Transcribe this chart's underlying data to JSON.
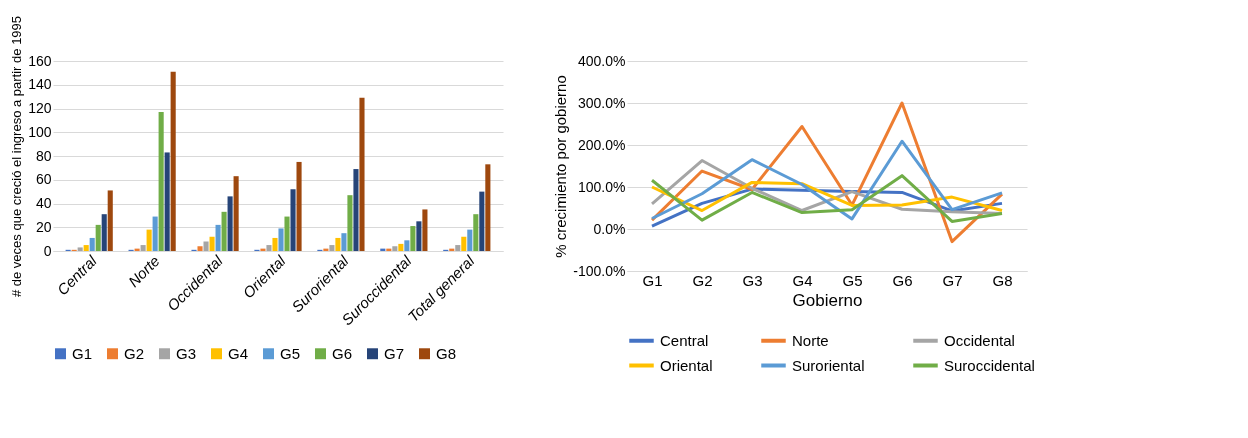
{
  "chart_data": [
    {
      "type": "bar",
      "ylabel": "# de veces que creció el ingreso a partir de 1995",
      "categories": [
        "Central",
        "Norte",
        "Occidental",
        "Oriental",
        "Suroriental",
        "Suroccidental",
        "Total general"
      ],
      "series": [
        {
          "name": "G1",
          "color": "#4472c4",
          "values": [
            1,
            1,
            1,
            1,
            1,
            2,
            1
          ]
        },
        {
          "name": "G2",
          "color": "#ed7d31",
          "values": [
            1,
            2,
            4,
            2,
            2,
            2,
            2
          ]
        },
        {
          "name": "G3",
          "color": "#a5a5a5",
          "values": [
            3,
            5,
            8,
            5,
            5,
            4,
            5
          ]
        },
        {
          "name": "G4",
          "color": "#ffc000",
          "values": [
            5,
            18,
            12,
            11,
            11,
            6,
            12
          ]
        },
        {
          "name": "G5",
          "color": "#5b9bd5",
          "values": [
            11,
            29,
            22,
            19,
            15,
            9,
            18
          ]
        },
        {
          "name": "G6",
          "color": "#70ad47",
          "values": [
            22,
            117,
            33,
            29,
            47,
            21,
            31
          ]
        },
        {
          "name": "G7",
          "color": "#264478",
          "values": [
            31,
            83,
            46,
            52,
            69,
            25,
            50
          ]
        },
        {
          "name": "G8",
          "color": "#9e480e",
          "values": [
            51,
            151,
            63,
            75,
            129,
            35,
            73
          ]
        }
      ],
      "ylim": [
        0,
        160
      ],
      "yticks": [
        0,
        20,
        40,
        60,
        80,
        100,
        120,
        140,
        160
      ],
      "grid": "y",
      "legend": "bottom"
    },
    {
      "type": "line",
      "xlabel": "Gobierno",
      "ylabel": "% crecimiento por gobierno",
      "categories": [
        "G1",
        "G2",
        "G3",
        "G4",
        "G5",
        "G6",
        "G7",
        "G8"
      ],
      "series": [
        {
          "name": "Central",
          "color": "#4472c4",
          "values": [
            7,
            61,
            95,
            92,
            89,
            87,
            43,
            61
          ]
        },
        {
          "name": "Norte",
          "color": "#ed7d31",
          "values": [
            21,
            138,
            94,
            244,
            57,
            300,
            -30,
            83
          ]
        },
        {
          "name": "Occidental",
          "color": "#a5a5a5",
          "values": [
            60,
            163,
            97,
            44,
            89,
            47,
            41,
            37
          ]
        },
        {
          "name": "Oriental",
          "color": "#ffc000",
          "values": [
            100,
            44,
            111,
            108,
            56,
            57,
            76,
            44
          ]
        },
        {
          "name": "Suroriental",
          "color": "#5b9bd5",
          "values": [
            25,
            84,
            165,
            106,
            24,
            209,
            46,
            86
          ]
        },
        {
          "name": "Suroccidental",
          "color": "#70ad47",
          "values": [
            116,
            21,
            87,
            39,
            46,
            127,
            18,
            37
          ]
        }
      ],
      "ylim": [
        -100,
        400
      ],
      "yticks": [
        {
          "value": -100,
          "label": "-100.0%"
        },
        {
          "value": 0,
          "label": "0.0%"
        },
        {
          "value": 100,
          "label": "100.0%"
        },
        {
          "value": 200,
          "label": "200.0%"
        },
        {
          "value": 300,
          "label": "300.0%"
        },
        {
          "value": 400,
          "label": "400.0%"
        }
      ],
      "grid": "y",
      "legend": "bottom",
      "marker": "none",
      "line_style": "solid"
    }
  ]
}
